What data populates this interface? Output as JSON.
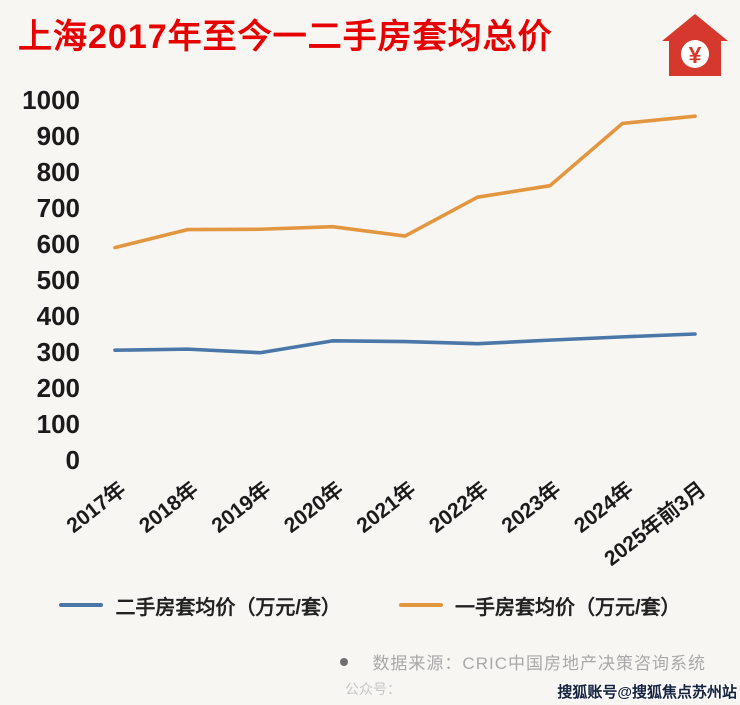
{
  "page": {
    "title": "上海2017年至今一二手房套均总价",
    "yuan_symbol": "¥",
    "source_note": "数据来源：CRIC中国房地产决策咨询系统",
    "bottom_partial": "公众号：",
    "corner_watermark": "搜狐账号@搜狐焦点苏州站"
  },
  "colors": {
    "title": "#e60000",
    "house": "#d7382d",
    "secondhand_line": "#4a76a8",
    "newhome_line": "#e39640",
    "axis_text": "#1b1b1b",
    "source_text": "#a8a8a8",
    "background": "#f7f6f3"
  },
  "chart_data": {
    "type": "line",
    "title": "上海2017年至今一二手房套均总价",
    "categories": [
      "2017年",
      "2018年",
      "2019年",
      "2020年",
      "2021年",
      "2022年",
      "2023年",
      "2024年",
      "2025年前3月"
    ],
    "series": [
      {
        "name": "二手房套均价（万元/套）",
        "key": "secondhand",
        "color": "#4a76a8",
        "values": [
          305,
          308,
          298,
          331,
          329,
          323,
          333,
          342,
          350
        ]
      },
      {
        "name": "一手房套均价（万元/套）",
        "key": "newhome",
        "color": "#e39640",
        "values": [
          590,
          640,
          641,
          648,
          622,
          730,
          762,
          935,
          955
        ]
      }
    ],
    "xlabel": "",
    "ylabel": "",
    "ylim": [
      0,
      1000
    ],
    "ytick_step": 100,
    "grid": false,
    "legend_position": "bottom"
  }
}
